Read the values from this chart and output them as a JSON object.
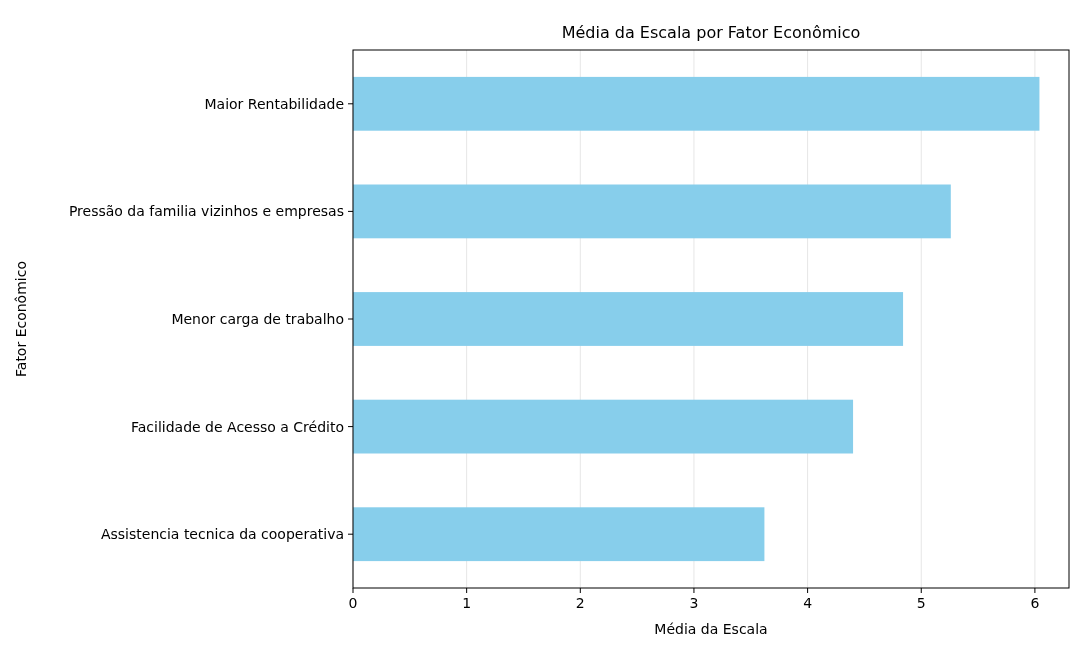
{
  "chart_data": {
    "type": "bar",
    "orientation": "horizontal",
    "title": "Média da Escala por Fator Econômico",
    "xlabel": "Média da Escala",
    "ylabel": "Fator Econômico",
    "categories": [
      "Maior Rentabilidade",
      "Pressão da familia vizinhos e empresas",
      "Menor carga de trabalho",
      "Facilidade de Acesso a Crédito",
      "Assistencia tecnica da cooperativa"
    ],
    "values": [
      6.04,
      5.26,
      4.84,
      4.4,
      3.62
    ],
    "color": "#87ceeb",
    "xlim": [
      0,
      6.3
    ],
    "xticks": [
      0,
      1,
      2,
      3,
      4,
      5,
      6
    ],
    "grid": "x"
  }
}
